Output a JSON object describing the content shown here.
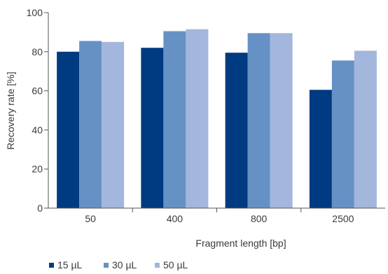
{
  "chart_data": {
    "type": "bar",
    "xlabel": "Fragment length [bp]",
    "ylabel": "Recovery rate [%]",
    "categories": [
      "50",
      "400",
      "800",
      "2500"
    ],
    "ylim": [
      0,
      100
    ],
    "yticks": [
      0,
      20,
      40,
      60,
      80,
      100
    ],
    "grid": false,
    "legend_position": "bottom-left",
    "series": [
      {
        "name": "15 µL",
        "color": "#003a80",
        "values": [
          80,
          82,
          79.5,
          60.5
        ]
      },
      {
        "name": "30 µL",
        "color": "#6591c5",
        "values": [
          85.5,
          90.5,
          89.5,
          75.5
        ]
      },
      {
        "name": "50 µL",
        "color": "#a3b6dc",
        "values": [
          85,
          91.5,
          89.5,
          80.5
        ]
      }
    ]
  }
}
